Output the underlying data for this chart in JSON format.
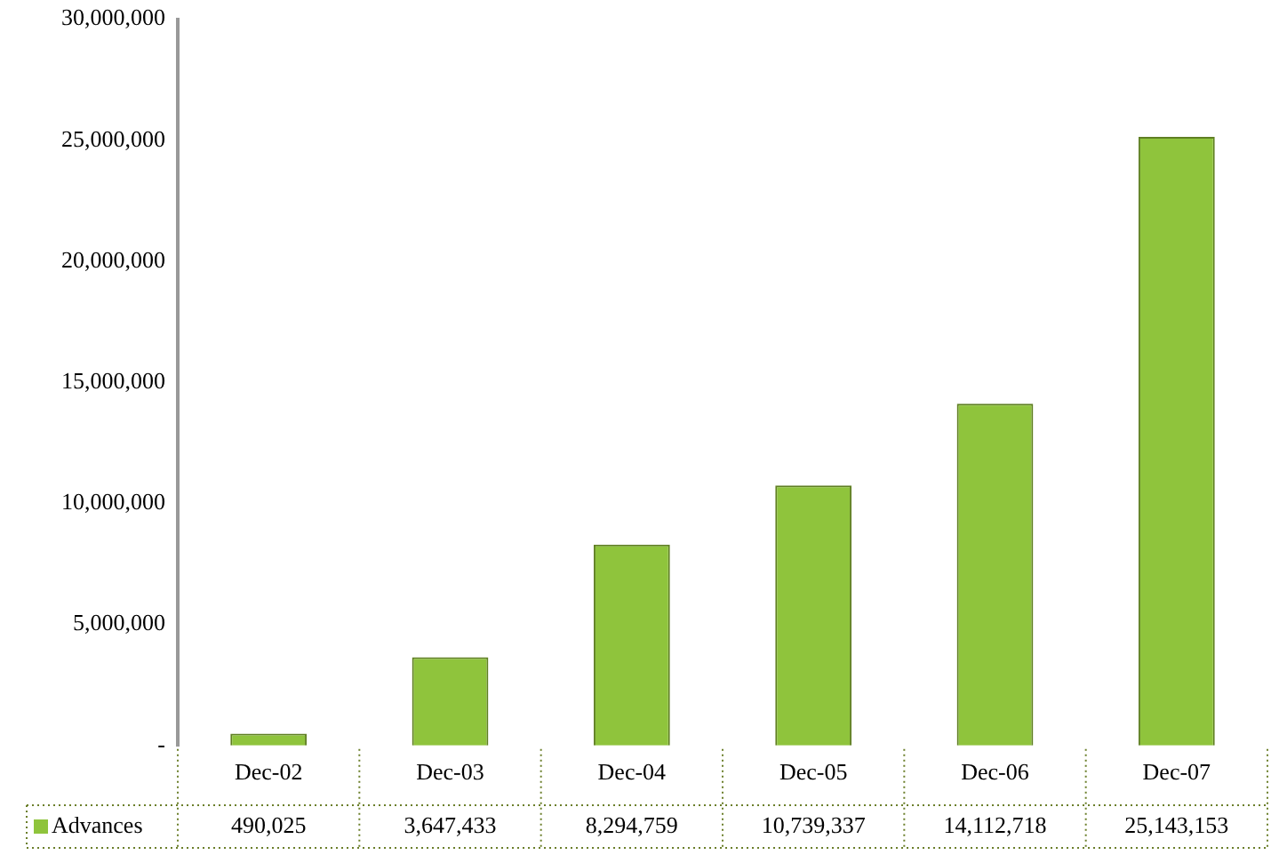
{
  "chart_data": {
    "type": "bar",
    "categories": [
      "Dec-02",
      "Dec-03",
      "Dec-04",
      "Dec-05",
      "Dec-06",
      "Dec-07"
    ],
    "series": [
      {
        "name": "Advances",
        "color": "#8fc43c",
        "values": [
          490025,
          3647433,
          8294759,
          10739337,
          14112718,
          25143153
        ]
      }
    ],
    "value_labels": [
      "490,025",
      "3,647,433",
      "8,294,759",
      "10,739,337",
      "14,112,718",
      "25,143,153"
    ],
    "ylim": [
      0,
      30000000
    ],
    "yticks": [
      {
        "value": 0,
        "label": "-"
      },
      {
        "value": 5000000,
        "label": "5,000,000"
      },
      {
        "value": 10000000,
        "label": "10,000,000"
      },
      {
        "value": 15000000,
        "label": "15,000,000"
      },
      {
        "value": 20000000,
        "label": "20,000,000"
      },
      {
        "value": 25000000,
        "label": "25,000,000"
      },
      {
        "value": 30000000,
        "label": "30,000,000"
      }
    ],
    "grid": false,
    "legend": "bottom"
  }
}
